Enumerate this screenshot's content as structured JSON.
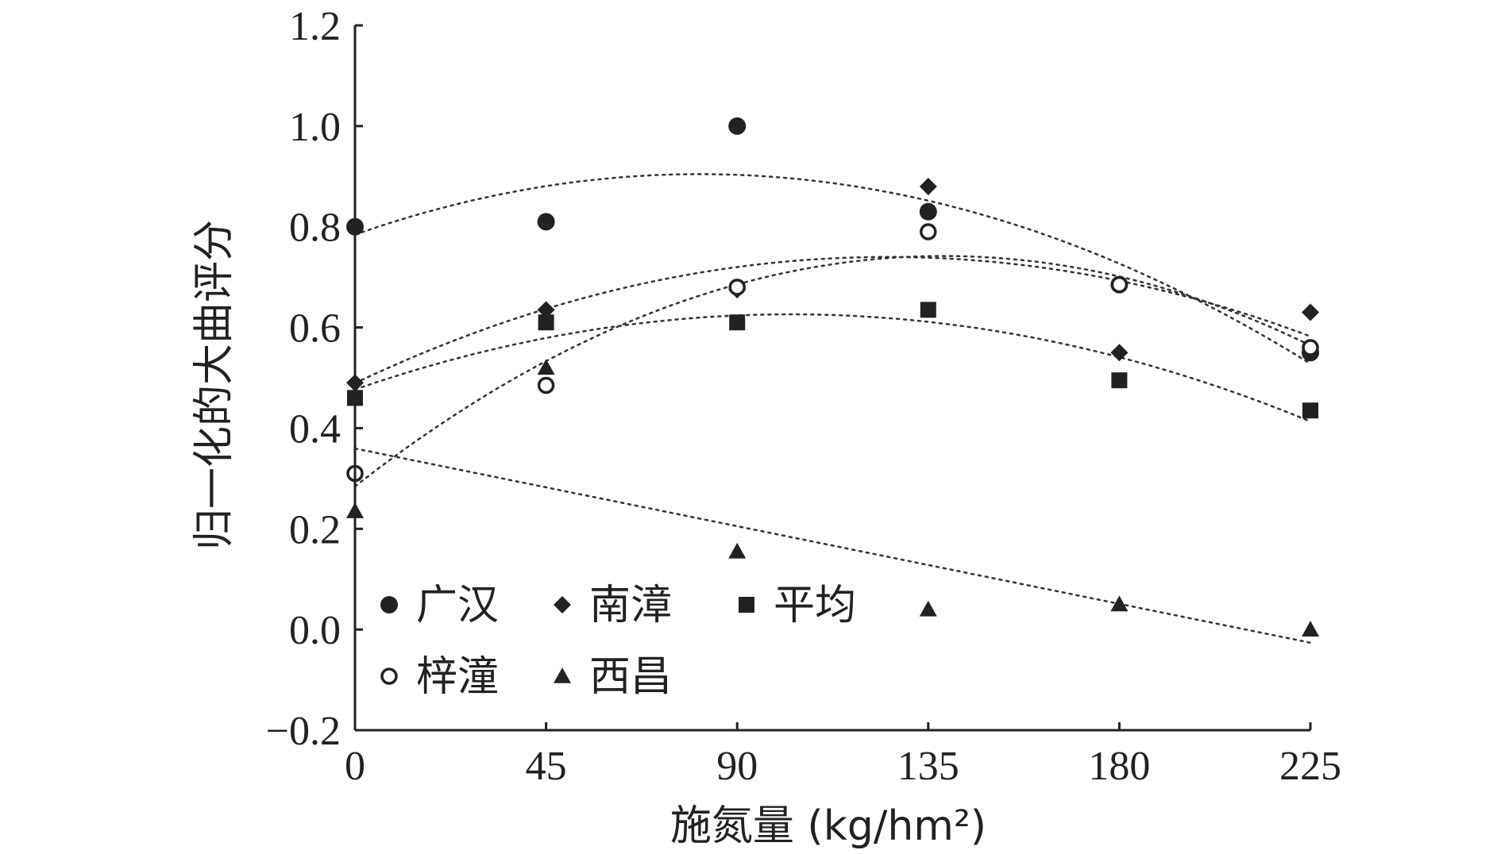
{
  "chart_data": {
    "type": "scatter",
    "title": "",
    "xlabel": "施氮量 (kg/hm²)",
    "ylabel": "归一化的大曲评分",
    "xlim": [
      0,
      225
    ],
    "ylim": [
      -0.2,
      1.2
    ],
    "xticks": [
      0,
      45,
      90,
      135,
      180,
      225
    ],
    "xtick_labels": [
      "0",
      "45",
      "90",
      "135",
      "180",
      "225"
    ],
    "yticks": [
      -0.2,
      0.0,
      0.2,
      0.4,
      0.6,
      0.8,
      1.0,
      1.2
    ],
    "ytick_labels": [
      "−0.2",
      "0.0",
      "0.2",
      "0.4",
      "0.6",
      "0.8",
      "1.0",
      "1.2"
    ],
    "grid": false,
    "legend_position": "bottom-left",
    "series": [
      {
        "name": "广汉",
        "marker": "circle-filled",
        "x": [
          0,
          45,
          90,
          135,
          180,
          225
        ],
        "y": [
          0.8,
          0.81,
          1.0,
          0.83,
          0.685,
          0.55
        ],
        "trend": {
          "x0": 0,
          "y0": 0.79,
          "x1": 225,
          "y1": 0.555
        }
      },
      {
        "name": "南漳",
        "marker": "diamond",
        "x": [
          0,
          45,
          90,
          135,
          180,
          225
        ],
        "y": [
          0.49,
          0.635,
          0.675,
          0.88,
          0.55,
          0.63
        ],
        "trend": {
          "x0": 0,
          "y0": 0.495,
          "x1": 225,
          "y1": 0.575
        }
      },
      {
        "name": "平均",
        "marker": "square",
        "x": [
          0,
          45,
          90,
          135,
          180,
          225
        ],
        "y": [
          0.46,
          0.61,
          0.61,
          0.635,
          0.495,
          0.435
        ],
        "trend": {
          "x0": 0,
          "y0": 0.475,
          "x1": 225,
          "y1": 0.42
        }
      },
      {
        "name": "梓潼",
        "marker": "circle-open",
        "x": [
          0,
          45,
          90,
          135,
          180,
          225
        ],
        "y": [
          0.31,
          0.485,
          0.68,
          0.79,
          0.685,
          0.56
        ],
        "trend": {
          "x0": 0,
          "y0": 0.29,
          "x1": 225,
          "y1": 0.545
        }
      },
      {
        "name": "西昌",
        "marker": "triangle",
        "x": [
          0,
          45,
          90,
          135,
          180,
          225
        ],
        "y": [
          0.235,
          0.52,
          0.155,
          0.04,
          0.05,
          0.0
        ],
        "trend": {
          "x0": 0,
          "y0": 0.345,
          "x1": 225,
          "y1": -0.035
        }
      }
    ]
  }
}
